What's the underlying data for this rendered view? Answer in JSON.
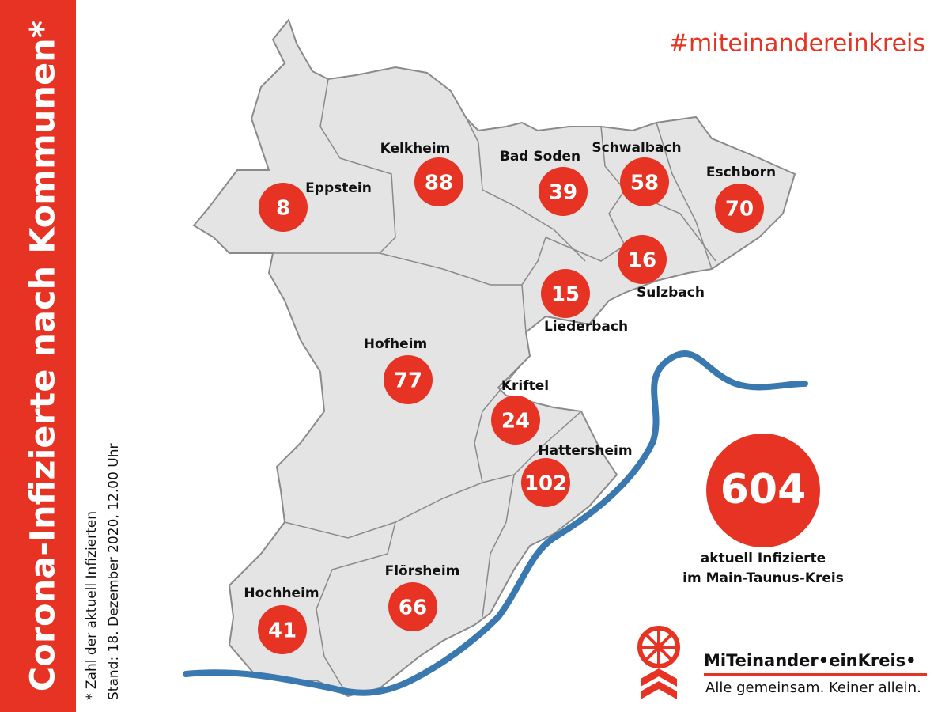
{
  "sidebar": {
    "title": "Corona-Infizierte nach Kommunen*",
    "footnote": [
      "* Zahl der aktuell Infizierten",
      "Stand: 18. Dezember 2020, 12.00 Uhr"
    ]
  },
  "hashtag": "#miteinandereinkreis",
  "municipalities": [
    {
      "name": "Eppstein",
      "count": 8
    },
    {
      "name": "Kelkheim",
      "count": 88
    },
    {
      "name": "Bad Soden",
      "count": 39
    },
    {
      "name": "Schwalbach",
      "count": 58
    },
    {
      "name": "Eschborn",
      "count": 70
    },
    {
      "name": "Sulzbach",
      "count": 16
    },
    {
      "name": "Liederbach",
      "count": 15
    },
    {
      "name": "Hofheim",
      "count": 77
    },
    {
      "name": "Kriftel",
      "count": 24
    },
    {
      "name": "Hattersheim",
      "count": 102
    },
    {
      "name": "Flörsheim",
      "count": 66
    },
    {
      "name": "Hochheim",
      "count": 41
    }
  ],
  "total": {
    "count": 604,
    "label": [
      "aktuell Infizierte",
      "im Main-Taunus-Kreis"
    ]
  },
  "logo": {
    "name": "MiTeinander•einKreis•",
    "slogan": "Alle gemeinsam. Keiner allein."
  }
}
